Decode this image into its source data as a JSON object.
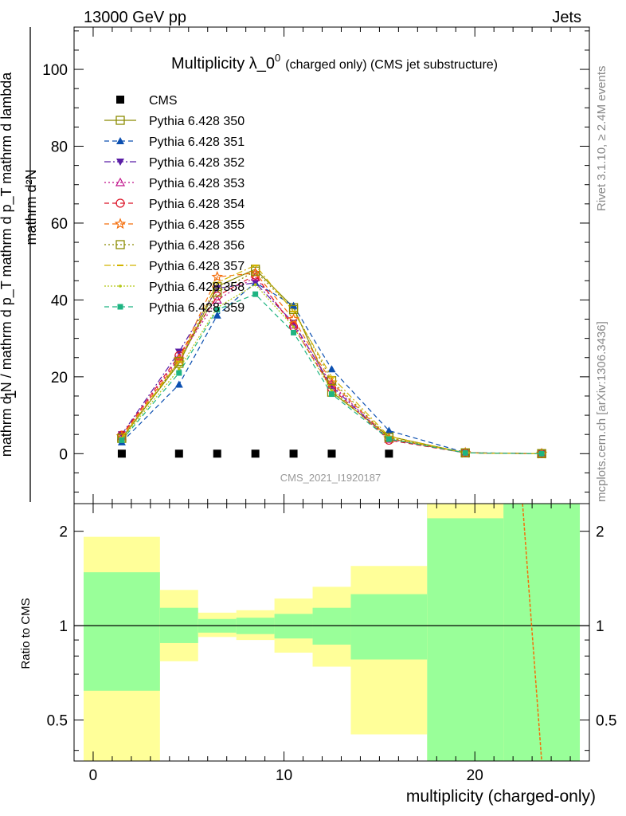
{
  "header": {
    "left": "13000 GeV pp",
    "right": "Jets"
  },
  "side_labels": {
    "rivet": "Rivet 3.1.10, ≥ 2.4M events",
    "mcplots": "mcplots.cern.ch [arXiv:1306.3436]"
  },
  "watermark": "CMS_2021_I1920187",
  "chart_data": [
    {
      "type": "scatter",
      "title": "Multiplicity λ_0",
      "title_sup": "0",
      "title_suffix": "(charged only) (CMS jet substructure)",
      "xlabel": "multiplicity (charged-only)",
      "ylabel_top": "1",
      "ylabel_bottom": "mathrm d N / mathrm d p_T mathrm d p_T mathrm d lambda",
      "ylabel_numerator": "mathrm d²N",
      "ylabel_denominator": "mathrm d N / mathrm d p_T mathrm d p_T mathrm d lambda",
      "xlim": [
        -1,
        26
      ],
      "ylim": [
        -13,
        111
      ],
      "xticks": [
        0,
        10,
        20
      ],
      "yticks": [
        0,
        20,
        40,
        60,
        80,
        100
      ],
      "data": {
        "name": "CMS",
        "x": [
          1.5,
          4.5,
          6.5,
          8.5,
          10.5,
          12.5,
          15.5
        ],
        "y": [
          0,
          0,
          0,
          0,
          0,
          0,
          0
        ]
      },
      "x": [
        1.5,
        4.5,
        6.5,
        8.5,
        10.5,
        12.5,
        15.5,
        19.5,
        23.5
      ],
      "series": [
        {
          "name": "Pythia 6.428 350",
          "color": "#8b8b00",
          "dash": "solid",
          "marker": "square-open",
          "values": [
            4.0,
            23.5,
            43.5,
            48.0,
            38.0,
            16.0,
            4.5,
            0.2,
            0.0
          ]
        },
        {
          "name": "Pythia 6.428 351",
          "color": "#0b4fb0",
          "dash": "6,4",
          "marker": "triangle-up",
          "values": [
            3.0,
            18.0,
            36.0,
            44.5,
            38.5,
            22.0,
            6.0,
            0.3,
            0.0
          ]
        },
        {
          "name": "Pythia 6.428 352",
          "color": "#5a1ea6",
          "dash": "8,3,2,3",
          "marker": "triangle-down",
          "values": [
            5.0,
            26.5,
            43.0,
            44.5,
            34.0,
            17.5,
            3.8,
            0.2,
            0.0
          ]
        },
        {
          "name": "Pythia 6.428 353",
          "color": "#c0128a",
          "dash": "2,3",
          "marker": "triangle-open",
          "values": [
            4.5,
            25.0,
            40.0,
            46.0,
            33.5,
            18.0,
            3.8,
            0.2,
            0.0
          ]
        },
        {
          "name": "Pythia 6.428 354",
          "color": "#dc1428",
          "dash": "6,4",
          "marker": "circle-open",
          "values": [
            4.8,
            25.5,
            41.0,
            46.5,
            33.0,
            17.0,
            3.5,
            0.2,
            0.0
          ]
        },
        {
          "name": "Pythia 6.428 355",
          "color": "#f46d0a",
          "dash": "6,4",
          "marker": "star",
          "values": [
            4.5,
            24.5,
            46.0,
            47.0,
            35.0,
            18.5,
            4.0,
            0.2,
            0.0
          ]
        },
        {
          "name": "Pythia 6.428 356",
          "color": "#8b8b00",
          "dash": "2,3",
          "marker": "square-open",
          "values": [
            4.0,
            24.0,
            42.0,
            47.5,
            37.5,
            19.0,
            4.2,
            0.2,
            0.0
          ]
        },
        {
          "name": "Pythia 6.428 357",
          "color": "#d2b400",
          "dash": "8,3,2,3",
          "marker": "dash",
          "values": [
            4.2,
            24.0,
            44.5,
            49.0,
            37.0,
            20.0,
            4.5,
            0.2,
            0.0
          ]
        },
        {
          "name": "Pythia 6.428 358",
          "color": "#b4c814",
          "dash": "2,2",
          "marker": "dot",
          "values": [
            3.8,
            22.0,
            38.0,
            44.0,
            33.0,
            16.5,
            4.0,
            0.2,
            0.0
          ]
        },
        {
          "name": "Pythia 6.428 359",
          "color": "#1eb482",
          "dash": "6,4",
          "marker": "square",
          "values": [
            3.5,
            21.0,
            37.5,
            41.5,
            31.5,
            15.5,
            3.8,
            0.2,
            0.0
          ]
        }
      ]
    },
    {
      "type": "area",
      "ylabel": "Ratio to CMS",
      "ylog": true,
      "ylim": [
        0.37,
        2.45
      ],
      "yticks": [
        0.5,
        1,
        2
      ],
      "ytick_labels": [
        "0.5",
        "1",
        "2"
      ],
      "xlim": [
        -1,
        26
      ],
      "reference": 1,
      "band_colors": {
        "inner": "#99ff99",
        "outer": "#ffff99"
      },
      "bins": [
        {
          "x0": -0.5,
          "x1": 3.5,
          "inner": [
            0.62,
            1.48
          ],
          "outer": [
            0.0,
            1.92
          ]
        },
        {
          "x0": 3.5,
          "x1": 5.5,
          "inner": [
            0.88,
            1.14
          ],
          "outer": [
            0.77,
            1.3
          ]
        },
        {
          "x0": 5.5,
          "x1": 7.5,
          "inner": [
            0.95,
            1.05
          ],
          "outer": [
            0.92,
            1.1
          ]
        },
        {
          "x0": 7.5,
          "x1": 9.5,
          "inner": [
            0.94,
            1.06
          ],
          "outer": [
            0.9,
            1.12
          ]
        },
        {
          "x0": 9.5,
          "x1": 11.5,
          "inner": [
            0.91,
            1.09
          ],
          "outer": [
            0.82,
            1.22
          ]
        },
        {
          "x0": 11.5,
          "x1": 13.5,
          "inner": [
            0.87,
            1.14
          ],
          "outer": [
            0.74,
            1.33
          ]
        },
        {
          "x0": 13.5,
          "x1": 17.5,
          "inner": [
            0.78,
            1.26
          ],
          "outer": [
            0.45,
            1.55
          ]
        },
        {
          "x0": 17.5,
          "x1": 21.5,
          "inner": [
            0.0,
            10.0
          ],
          "outer": [
            0.0,
            10.0
          ],
          "outer_top_only": [
            2.2,
            10.0
          ]
        },
        {
          "x0": 21.5,
          "x1": 25.5,
          "inner": [
            0.0,
            10.0
          ],
          "outer": [
            0.0,
            10.0
          ]
        }
      ],
      "ratio_line": {
        "color": "#f46d0a",
        "x": [
          22.5,
          23.5
        ],
        "y": [
          2.45,
          0.37
        ]
      }
    }
  ]
}
